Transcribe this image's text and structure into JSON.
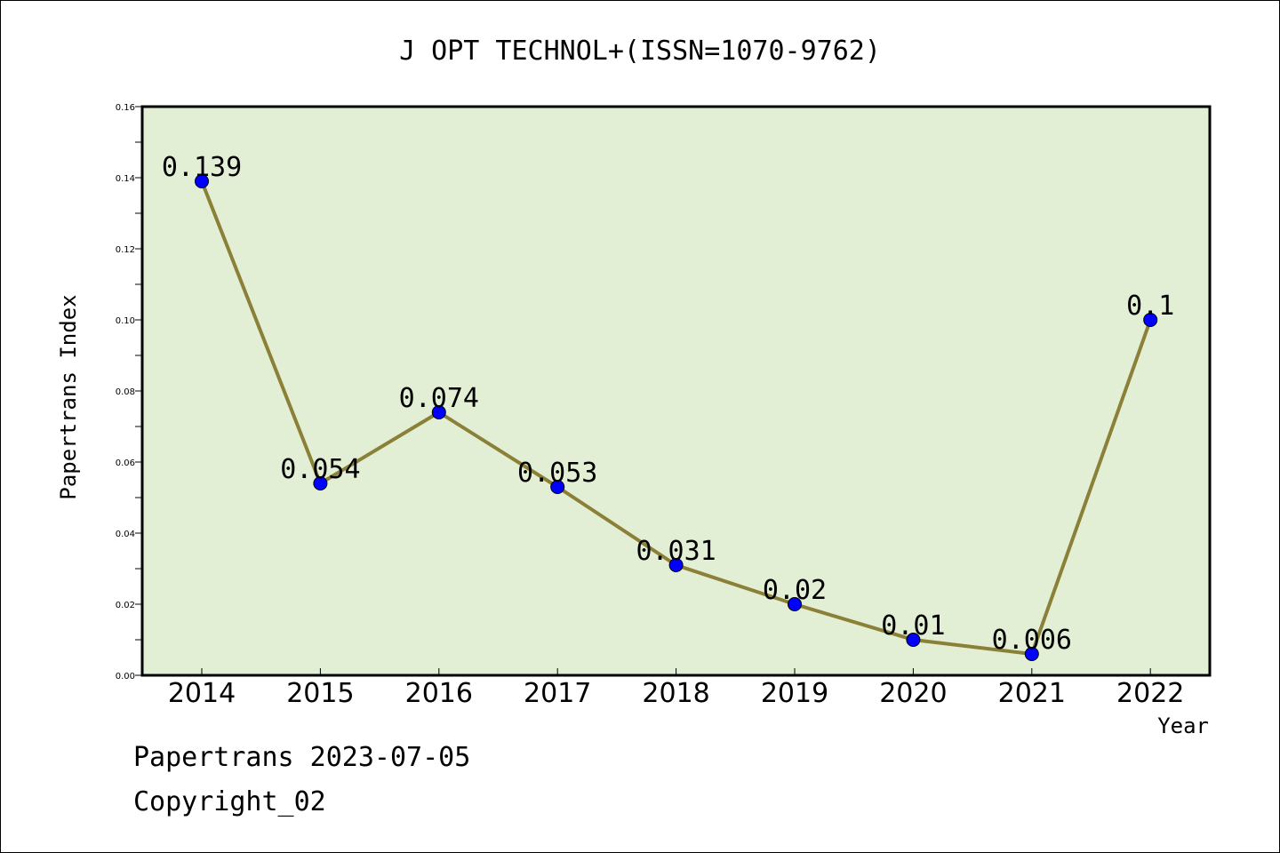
{
  "chart_data": {
    "type": "line",
    "title": "J OPT TECHNOL+(ISSN=1070-9762)",
    "xlabel": "Year",
    "ylabel": "Papertrans Index",
    "categories": [
      "2014",
      "2015",
      "2016",
      "2017",
      "2018",
      "2019",
      "2020",
      "2021",
      "2022"
    ],
    "values": [
      0.139,
      0.054,
      0.074,
      0.053,
      0.031,
      0.02,
      0.01,
      0.006,
      0.1
    ],
    "data_labels": [
      "0.139",
      "0.054",
      "0.074",
      "0.053",
      "0.031",
      "0.02",
      "0.01",
      "0.006",
      "0.1"
    ],
    "yticks": [
      "0.00",
      "0.02",
      "0.04",
      "0.06",
      "0.08",
      "0.10",
      "0.12",
      "0.14",
      "0.16"
    ],
    "ylim": [
      0,
      0.16
    ],
    "grid": false,
    "colors": {
      "plot_background": "#e2efd5",
      "line": "#8b8038",
      "marker": "#0000ff"
    }
  },
  "footer": {
    "source": "Papertrans 2023-07-05",
    "copyright": "Copyright_02"
  }
}
